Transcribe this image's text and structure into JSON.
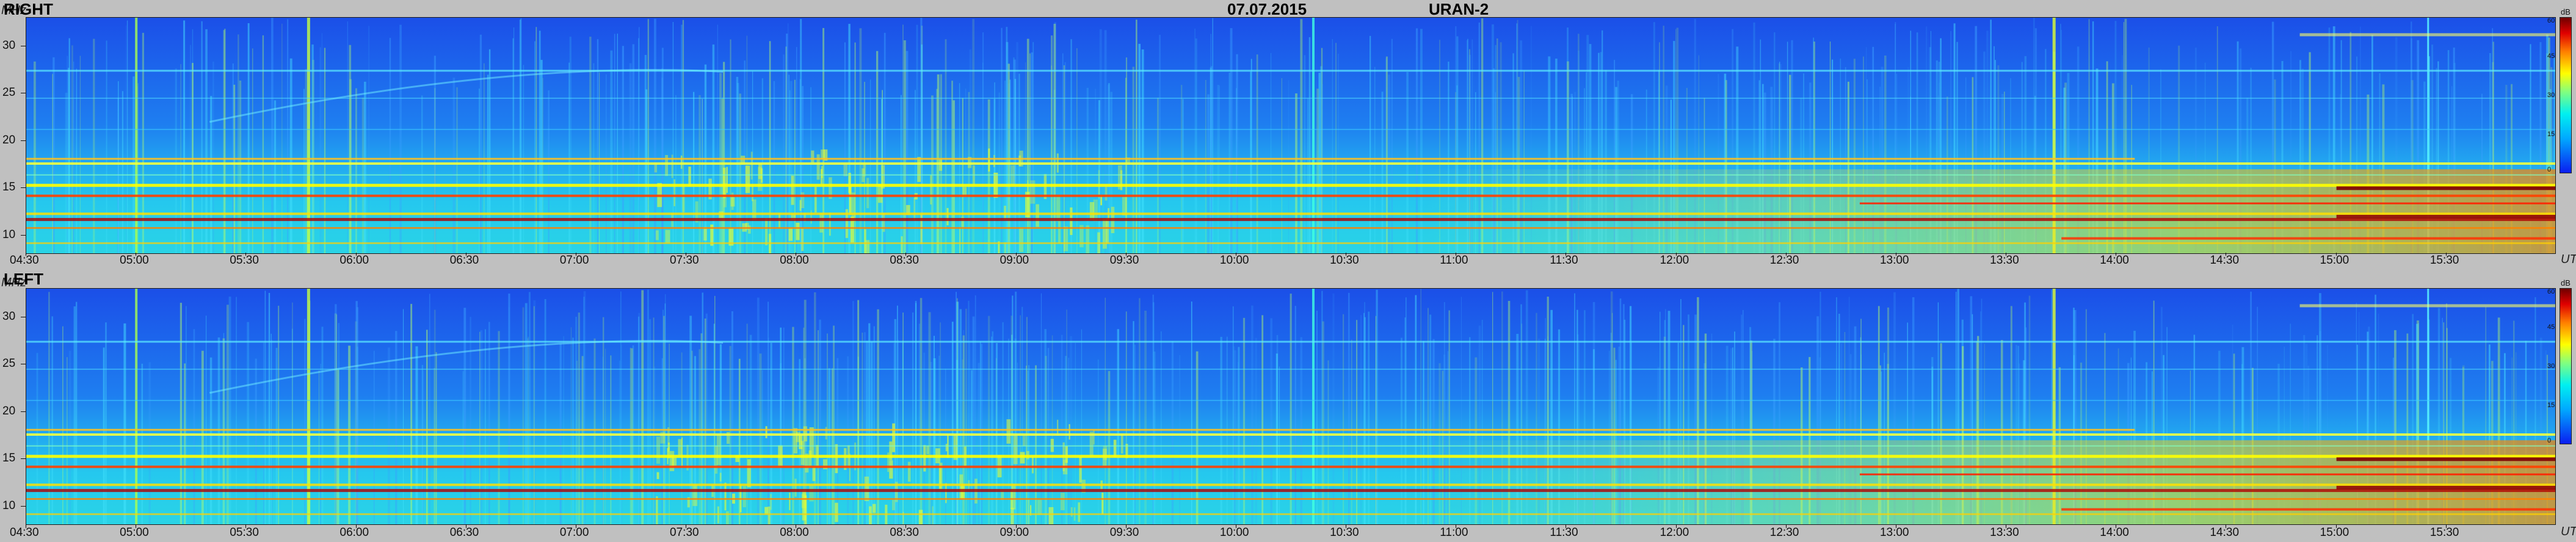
{
  "date": "07.07.2015",
  "station": "URAN-2",
  "chart_data": [
    {
      "type": "heatmap",
      "title": "RIGHT",
      "ylabel": "MHz",
      "xlabel": "UT",
      "y_ticks": [
        "10",
        "15",
        "20",
        "25",
        "30"
      ],
      "ylim": [
        8,
        33
      ],
      "x_ticks": [
        "04:30",
        "05:00",
        "05:30",
        "06:00",
        "06:30",
        "07:00",
        "07:30",
        "08:00",
        "08:30",
        "09:00",
        "09:30",
        "10:00",
        "10:30",
        "11:00",
        "11:30",
        "12:00",
        "12:30",
        "13:00",
        "13:30",
        "14:00",
        "14:30",
        "15:00",
        "15:30"
      ],
      "xlim": [
        "04:30",
        "16:00"
      ],
      "colorbar": {
        "unit": "dB",
        "ticks": [
          "0",
          "15",
          "30",
          "45",
          "60"
        ],
        "range": [
          0,
          60
        ]
      },
      "colors": {
        "low": "#0a3ce6",
        "mid": "#00e0e0",
        "high": "#ffff00",
        "max": "#800000"
      }
    },
    {
      "type": "heatmap",
      "title": "LEFT",
      "ylabel": "MHz",
      "xlabel": "UT",
      "y_ticks": [
        "10",
        "15",
        "20",
        "25",
        "30"
      ],
      "ylim": [
        8,
        33
      ],
      "x_ticks": [
        "04:30",
        "05:00",
        "05:30",
        "06:00",
        "06:30",
        "07:00",
        "07:30",
        "08:00",
        "08:30",
        "09:00",
        "09:30",
        "10:00",
        "10:30",
        "11:00",
        "11:30",
        "12:00",
        "12:30",
        "13:00",
        "13:30",
        "14:00",
        "14:30",
        "15:00",
        "15:30"
      ],
      "xlim": [
        "04:30",
        "16:00"
      ],
      "colorbar": {
        "unit": "dB",
        "ticks": [
          "0",
          "15",
          "30",
          "45",
          "60"
        ],
        "range": [
          0,
          60
        ]
      },
      "colors": {
        "low": "#0a3ce6",
        "mid": "#00e0e0",
        "high": "#ffff00",
        "max": "#800000"
      }
    }
  ]
}
